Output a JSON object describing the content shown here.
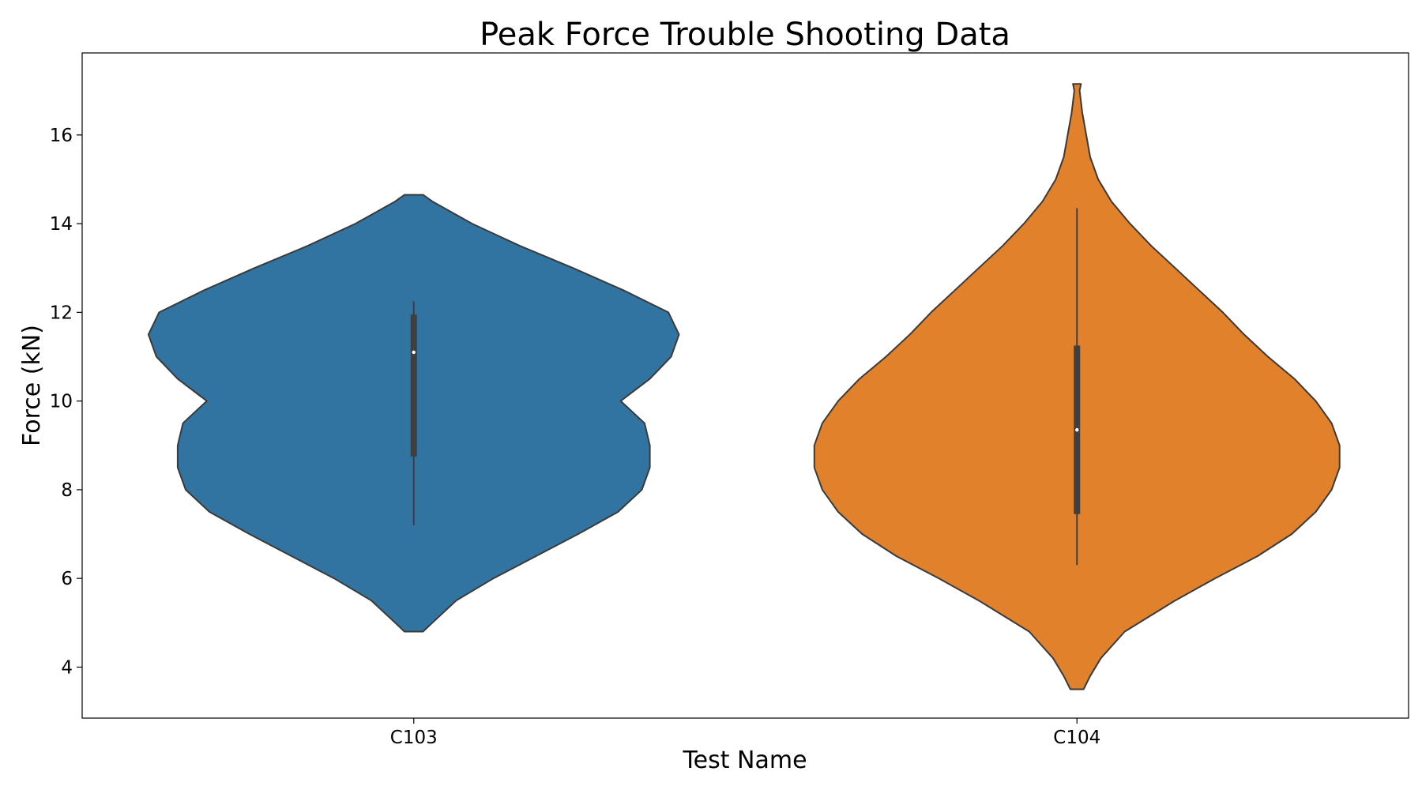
{
  "chart_data": {
    "type": "violin",
    "title": "Peak Force Trouble Shooting Data",
    "xlabel": "Test Name",
    "ylabel": "Force (kN)",
    "ylim": [
      2.85,
      17.85
    ],
    "yticks": [
      4,
      6,
      8,
      10,
      12,
      14,
      16
    ],
    "grid": false,
    "categories": [
      "C103",
      "C104"
    ],
    "series": [
      {
        "category": "C103",
        "color": "#3274a1",
        "min": 4.8,
        "max": 14.65,
        "median": 11.1,
        "q1": 8.75,
        "q3": 11.95,
        "whisker_low": 7.2,
        "whisker_high": 12.25,
        "density": [
          [
            4.8,
            0.035
          ],
          [
            5.0,
            0.07
          ],
          [
            5.5,
            0.16
          ],
          [
            6.0,
            0.3
          ],
          [
            6.5,
            0.46
          ],
          [
            7.0,
            0.62
          ],
          [
            7.5,
            0.77
          ],
          [
            8.0,
            0.86
          ],
          [
            8.5,
            0.89
          ],
          [
            9.0,
            0.89
          ],
          [
            9.5,
            0.87
          ],
          [
            10.0,
            0.78
          ],
          [
            10.5,
            0.89
          ],
          [
            11.0,
            0.97
          ],
          [
            11.5,
            1.0
          ],
          [
            12.0,
            0.96
          ],
          [
            12.5,
            0.79
          ],
          [
            13.0,
            0.6
          ],
          [
            13.5,
            0.4
          ],
          [
            14.0,
            0.22
          ],
          [
            14.5,
            0.07
          ],
          [
            14.65,
            0.035
          ]
        ]
      },
      {
        "category": "C104",
        "color": "#e1812c",
        "min": 3.5,
        "max": 17.15,
        "median": 9.35,
        "q1": 7.45,
        "q3": 11.25,
        "whisker_low": 6.3,
        "whisker_high": 14.35,
        "density": [
          [
            3.5,
            0.025
          ],
          [
            3.8,
            0.05
          ],
          [
            4.2,
            0.09
          ],
          [
            4.8,
            0.18
          ],
          [
            5.5,
            0.37
          ],
          [
            6.0,
            0.52
          ],
          [
            6.5,
            0.68
          ],
          [
            7.0,
            0.81
          ],
          [
            7.5,
            0.9
          ],
          [
            8.0,
            0.96
          ],
          [
            8.5,
            0.99
          ],
          [
            9.0,
            0.99
          ],
          [
            9.5,
            0.96
          ],
          [
            10.0,
            0.9
          ],
          [
            10.5,
            0.82
          ],
          [
            11.0,
            0.72
          ],
          [
            11.5,
            0.63
          ],
          [
            12.0,
            0.55
          ],
          [
            12.5,
            0.46
          ],
          [
            13.0,
            0.37
          ],
          [
            13.5,
            0.28
          ],
          [
            14.0,
            0.2
          ],
          [
            14.5,
            0.13
          ],
          [
            15.0,
            0.08
          ],
          [
            15.5,
            0.05
          ],
          [
            16.0,
            0.035
          ],
          [
            16.5,
            0.02
          ],
          [
            17.0,
            0.01
          ],
          [
            17.15,
            0.015
          ]
        ]
      }
    ]
  }
}
